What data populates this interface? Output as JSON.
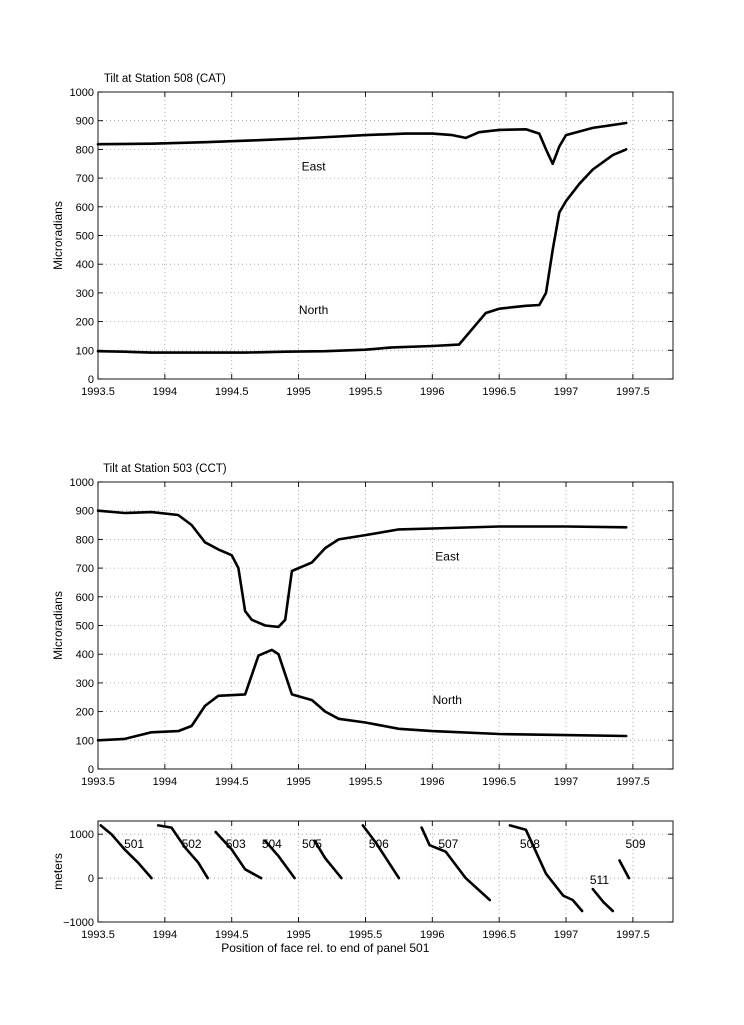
{
  "chart_data": [
    {
      "type": "line",
      "title": "Tilt at Station 508 (CAT)",
      "xlabel": "",
      "ylabel": "Microradians",
      "xlim": [
        1993.5,
        1997.8
      ],
      "ylim": [
        0,
        1000
      ],
      "xticks": [
        1993.5,
        1994,
        1994.5,
        1995,
        1995.5,
        1996,
        1996.5,
        1997,
        1997.5
      ],
      "xtick_labels": [
        "1993.5",
        "1994",
        "1994.5",
        "1995",
        "1995.5",
        "1996",
        "1996.5",
        "1997",
        "1997.5"
      ],
      "yticks": [
        0,
        100,
        200,
        300,
        400,
        500,
        600,
        700,
        800,
        900,
        1000
      ],
      "grid": true,
      "annotations": [
        {
          "text": "East",
          "x": 1995.0,
          "y": 740
        },
        {
          "text": "North",
          "x": 1995.0,
          "y": 240
        }
      ],
      "series": [
        {
          "x": [
            1993.5,
            1993.9,
            1994.3,
            1994.7,
            1995.0,
            1995.3,
            1995.5,
            1995.8,
            1996.0,
            1996.15,
            1996.25,
            1996.35,
            1996.5,
            1996.7,
            1996.8,
            1996.85,
            1996.9,
            1996.95,
            1997.0,
            1997.2,
            1997.45
          ],
          "y": [
            818,
            820,
            825,
            832,
            838,
            845,
            850,
            855,
            855,
            850,
            840,
            860,
            868,
            870,
            855,
            800,
            750,
            810,
            850,
            875,
            892
          ]
        },
        {
          "x": [
            1993.5,
            1993.7,
            1993.9,
            1994.2,
            1994.6,
            1994.9,
            1995.2,
            1995.5,
            1995.7,
            1996.0,
            1996.2,
            1996.3,
            1996.4,
            1996.5,
            1996.7,
            1996.8,
            1996.85,
            1996.9,
            1996.95,
            1997.0,
            1997.1,
            1997.2,
            1997.35,
            1997.45
          ],
          "y": [
            97,
            95,
            92,
            92,
            92,
            95,
            97,
            102,
            110,
            115,
            120,
            175,
            230,
            245,
            255,
            258,
            300,
            450,
            580,
            620,
            680,
            730,
            780,
            800
          ]
        }
      ]
    },
    {
      "type": "line",
      "title": "Tilt at Station 503 (CCT)",
      "xlabel": "",
      "ylabel": "Microradians",
      "xlim": [
        1993.5,
        1997.8
      ],
      "ylim": [
        0,
        1000
      ],
      "xticks": [
        1993.5,
        1994,
        1994.5,
        1995,
        1995.5,
        1996,
        1996.5,
        1997,
        1997.5
      ],
      "xtick_labels": [
        "1993.5",
        "1994",
        "1994.5",
        "1995",
        "1995.5",
        "1996",
        "1996.5",
        "1997",
        "1997.5"
      ],
      "yticks": [
        0,
        100,
        200,
        300,
        400,
        500,
        600,
        700,
        800,
        900,
        1000
      ],
      "grid": true,
      "annotations": [
        {
          "text": "East",
          "x": 1996.0,
          "y": 740
        },
        {
          "text": "North",
          "x": 1996.0,
          "y": 240
        }
      ],
      "series": [
        {
          "x": [
            1993.5,
            1993.7,
            1993.9,
            1994.1,
            1994.2,
            1994.3,
            1994.4,
            1994.5,
            1994.55,
            1994.6,
            1994.65,
            1994.75,
            1994.85,
            1994.9,
            1994.95,
            1995.1,
            1995.2,
            1995.3,
            1995.5,
            1995.75,
            1996.0,
            1996.5,
            1997.0,
            1997.45
          ],
          "y": [
            900,
            892,
            895,
            885,
            850,
            790,
            765,
            745,
            700,
            550,
            520,
            500,
            495,
            520,
            690,
            720,
            770,
            800,
            815,
            835,
            838,
            845,
            845,
            842
          ]
        },
        {
          "x": [
            1993.5,
            1993.7,
            1993.9,
            1994.1,
            1994.2,
            1994.3,
            1994.4,
            1994.6,
            1994.7,
            1994.8,
            1994.85,
            1994.9,
            1994.95,
            1995.1,
            1995.2,
            1995.3,
            1995.5,
            1995.75,
            1996.0,
            1996.5,
            1997.0,
            1997.45
          ],
          "y": [
            100,
            105,
            128,
            132,
            150,
            220,
            255,
            260,
            395,
            415,
            400,
            330,
            260,
            240,
            200,
            175,
            162,
            140,
            132,
            122,
            118,
            115
          ]
        }
      ]
    },
    {
      "type": "line",
      "title": "",
      "xlabel": "Position of face rel. to end of panel 501",
      "ylabel": "meters",
      "xlim": [
        1993.5,
        1997.8
      ],
      "ylim": [
        -1000,
        1300
      ],
      "xticks": [
        1993.5,
        1994,
        1994.5,
        1995,
        1995.5,
        1996,
        1996.5,
        1997,
        1997.5
      ],
      "xtick_labels": [
        "1993.5",
        "1994",
        "1994.5",
        "1995",
        "1995.5",
        "1996",
        "1996.5",
        "1997",
        "1997.5"
      ],
      "yticks": [
        -1000,
        0,
        1000
      ],
      "ytick_labels": [
        "−1000",
        "0",
        "1000"
      ],
      "grid": true,
      "series": [
        {
          "name": "501",
          "label_x": 1993.77,
          "label_y": 780,
          "x": [
            1993.52,
            1993.6,
            1993.7,
            1993.8,
            1993.9
          ],
          "y": [
            1200,
            1000,
            650,
            350,
            0
          ]
        },
        {
          "name": "502",
          "label_x": 1994.2,
          "label_y": 780,
          "x": [
            1993.95,
            1994.05,
            1994.15,
            1994.25,
            1994.32
          ],
          "y": [
            1200,
            1150,
            700,
            350,
            0
          ]
        },
        {
          "name": "503",
          "label_x": 1994.53,
          "label_y": 780,
          "x": [
            1994.38,
            1994.5,
            1994.6,
            1994.72
          ],
          "y": [
            1050,
            650,
            200,
            0
          ]
        },
        {
          "name": "504",
          "label_x": 1994.8,
          "label_y": 780,
          "x": [
            1994.75,
            1994.85,
            1994.97
          ],
          "y": [
            850,
            500,
            0
          ]
        },
        {
          "name": "505",
          "label_x": 1995.1,
          "label_y": 780,
          "x": [
            1995.12,
            1995.2,
            1995.32
          ],
          "y": [
            850,
            450,
            0
          ]
        },
        {
          "name": "506",
          "label_x": 1995.6,
          "label_y": 780,
          "x": [
            1995.48,
            1995.58,
            1995.75
          ],
          "y": [
            1200,
            800,
            0
          ]
        },
        {
          "name": "507",
          "label_x": 1996.12,
          "label_y": 780,
          "x": [
            1995.92,
            1995.98,
            1996.1,
            1996.25,
            1996.43
          ],
          "y": [
            1150,
            750,
            600,
            0,
            -500
          ]
        },
        {
          "name": "508",
          "label_x": 1996.73,
          "label_y": 780,
          "x": [
            1996.58,
            1996.7,
            1996.85,
            1996.98,
            1997.05,
            1997.12
          ],
          "y": [
            1200,
            1100,
            100,
            -400,
            -500,
            -750
          ]
        },
        {
          "name": "509",
          "label_x": 1997.52,
          "label_y": 780,
          "x": [
            1997.4,
            1997.47
          ],
          "y": [
            400,
            0
          ]
        },
        {
          "name": "511",
          "label_x": 1997.25,
          "label_y": -40,
          "x": [
            1997.2,
            1997.28,
            1997.35
          ],
          "y": [
            -250,
            -550,
            -750
          ]
        }
      ]
    }
  ]
}
